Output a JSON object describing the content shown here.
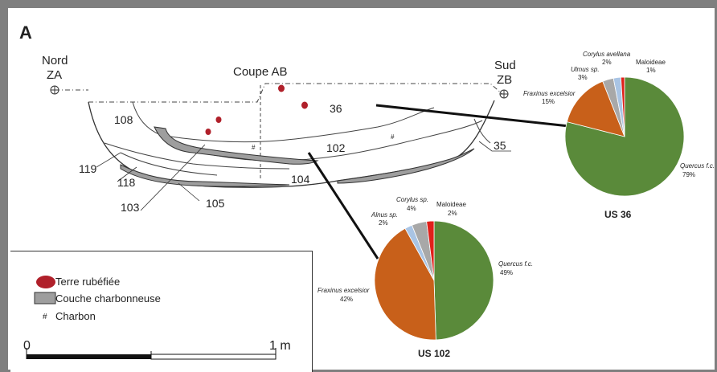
{
  "panel_letter": "A",
  "section": {
    "title": "Coupe AB",
    "north_label_1": "Nord",
    "north_label_2": "ZA",
    "south_label_1": "Sud",
    "south_label_2": "ZB",
    "layers": [
      "108",
      "36",
      "102",
      "104",
      "119",
      "118",
      "103",
      "105",
      "35"
    ],
    "charcoal_mark": "#"
  },
  "legend": {
    "items": [
      {
        "label": "Terre rubéfiée",
        "color": "#b0202a"
      },
      {
        "label": "Couche charbonneuse",
        "color": "#9e9e9e"
      },
      {
        "label": "Charbon",
        "symbol": "#"
      }
    ],
    "scale_start": "0",
    "scale_end": "1 m"
  },
  "chart_data": [
    {
      "type": "pie",
      "title": "US 36",
      "slices": [
        {
          "label": "Quercus f.c.",
          "value": 79,
          "pct": "79%",
          "color": "#5a8a3a"
        },
        {
          "label": "Fraxinus excelsior",
          "value": 15,
          "pct": "15%",
          "color": "#c8601a"
        },
        {
          "label": "Ulmus sp.",
          "value": 3,
          "pct": "3%",
          "color": "#a8a8a8"
        },
        {
          "label": "Corylus avellana",
          "value": 2,
          "pct": "2%",
          "color": "#a9c4e4"
        },
        {
          "label": "Maloideae",
          "value": 1,
          "pct": "1%",
          "color": "#e0201a"
        }
      ]
    },
    {
      "type": "pie",
      "title": "US 102",
      "slices": [
        {
          "label": "Quercus f.c.",
          "value": 49,
          "pct": "49%",
          "color": "#5a8a3a"
        },
        {
          "label": "Fraxinus excelsior",
          "value": 42,
          "pct": "42%",
          "color": "#c8601a"
        },
        {
          "label": "Alnus sp.",
          "value": 2,
          "pct": "2%",
          "color": "#a9c4e4"
        },
        {
          "label": "Corylus sp.",
          "value": 4,
          "pct": "4%",
          "color": "#a8a8a8"
        },
        {
          "label": "Maloideae",
          "value": 2,
          "pct": "2%",
          "color": "#e0201a"
        }
      ]
    }
  ]
}
